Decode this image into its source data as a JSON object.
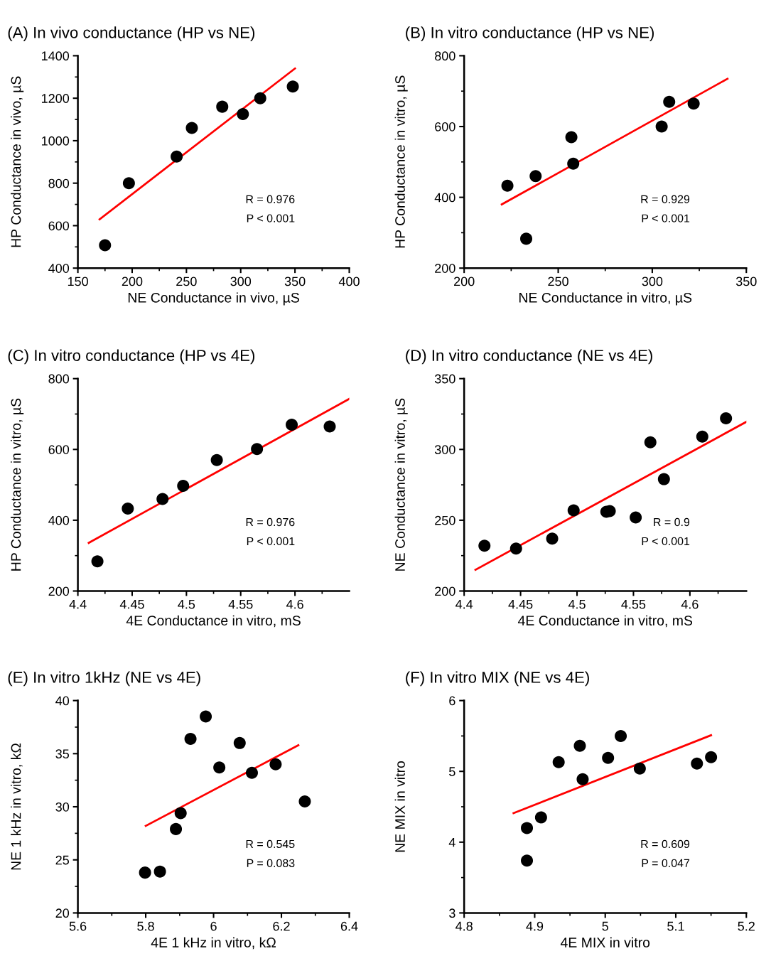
{
  "chart_data": [
    {
      "type": "scatter",
      "title": "(A) In vivo conductance (HP vs NE)",
      "xlabel": "NE Conductance in vivo, µS",
      "ylabel": "HP Conductance in vivo, µS",
      "xlim": [
        150,
        400
      ],
      "xticks": [
        150,
        200,
        250,
        300,
        350,
        400
      ],
      "ylim": [
        400,
        1400
      ],
      "yticks": [
        400,
        600,
        800,
        1000,
        1200,
        1400
      ],
      "grid": false,
      "legend": false,
      "annotations": [
        "R = 0.976",
        "P < 0.001"
      ],
      "series": [
        {
          "marker": "circle",
          "color": "#000000",
          "x": [
            175,
            197,
            241,
            255,
            283,
            302,
            318,
            348
          ],
          "values": [
            508,
            800,
            925,
            1060,
            1160,
            1125,
            1200,
            1255
          ]
        },
        {
          "type": "line",
          "color": "#ff0000",
          "x": [
            170,
            350
          ],
          "values": [
            630,
            1340
          ]
        }
      ]
    },
    {
      "type": "scatter",
      "title": "(B) In vitro conductance (HP vs NE)",
      "xlabel": "NE Conductance in vitro, µS",
      "ylabel": "HP Conductance in vitro, µS",
      "xlim": [
        200,
        350
      ],
      "xticks": [
        200,
        250,
        300,
        350
      ],
      "ylim": [
        200,
        800
      ],
      "yticks": [
        200,
        400,
        600,
        800
      ],
      "grid": false,
      "legend": false,
      "annotations": [
        "R = 0.929",
        "P < 0.001"
      ],
      "series": [
        {
          "marker": "circle",
          "color": "#000000",
          "x": [
            223,
            233,
            238,
            257,
            258,
            305,
            309,
            322
          ],
          "values": [
            433,
            283,
            460,
            570,
            495,
            600,
            670,
            665
          ]
        },
        {
          "type": "line",
          "color": "#ff0000",
          "x": [
            220,
            340
          ],
          "values": [
            380,
            735
          ]
        }
      ]
    },
    {
      "type": "scatter",
      "title": "(C) In vitro conductance (HP vs 4E)",
      "xlabel": "4E Conductance in vitro, mS",
      "ylabel": "HP Conductance in vitro, µS",
      "xlim": [
        4.4,
        4.65
      ],
      "xticks": [
        4.4,
        4.45,
        4.5,
        4.55,
        4.6
      ],
      "ylim": [
        200,
        800
      ],
      "yticks": [
        200,
        400,
        600,
        800
      ],
      "grid": false,
      "legend": false,
      "annotations": [
        "R = 0.976",
        "P < 0.001"
      ],
      "series": [
        {
          "marker": "circle",
          "color": "#000000",
          "x": [
            4.418,
            4.446,
            4.478,
            4.497,
            4.528,
            4.565,
            4.597,
            4.632
          ],
          "values": [
            284,
            433,
            460,
            497,
            570,
            601,
            670,
            665
          ]
        },
        {
          "type": "line",
          "color": "#ff0000",
          "x": [
            4.41,
            4.65
          ],
          "values": [
            336,
            743
          ]
        }
      ]
    },
    {
      "type": "scatter",
      "title": "(D) In vitro conductance (NE vs 4E)",
      "xlabel": "4E Conductance in vitro, mS",
      "ylabel": "NE Conductance in vitro, µS",
      "xlim": [
        4.4,
        4.65
      ],
      "xticks": [
        4.4,
        4.45,
        4.5,
        4.55,
        4.6
      ],
      "ylim": [
        200,
        350
      ],
      "yticks": [
        200,
        250,
        300,
        350
      ],
      "grid": false,
      "legend": false,
      "annotations": [
        "R = 0.9",
        "P < 0.001"
      ],
      "series": [
        {
          "marker": "circle",
          "color": "#000000",
          "x": [
            4.418,
            4.446,
            4.478,
            4.497,
            4.526,
            4.529,
            4.552,
            4.565,
            4.577,
            4.611,
            4.632
          ],
          "values": [
            232,
            230,
            237,
            257,
            256,
            256.5,
            252,
            305,
            279,
            309,
            322
          ]
        },
        {
          "type": "line",
          "color": "#ff0000",
          "x": [
            4.41,
            4.65
          ],
          "values": [
            215,
            319.5
          ]
        }
      ]
    },
    {
      "type": "scatter",
      "title": "(E) In vitro 1kHz (NE vs 4E)",
      "xlabel": "4E 1 kHz in vitro, kΩ",
      "ylabel": "NE 1 kHz in vitro, kΩ",
      "xlim": [
        5.6,
        6.4
      ],
      "xticks": [
        5.6,
        5.8,
        6,
        6.2,
        6.4
      ],
      "ylim": [
        20,
        40
      ],
      "yticks": [
        20,
        25,
        30,
        35,
        40
      ],
      "grid": false,
      "legend": false,
      "annotations": [
        "R = 0.545",
        "P = 0.083"
      ],
      "series": [
        {
          "marker": "circle",
          "color": "#000000",
          "x": [
            5.798,
            5.842,
            5.889,
            5.903,
            5.932,
            5.977,
            6.017,
            6.077,
            6.113,
            6.183,
            6.269
          ],
          "values": [
            23.8,
            23.9,
            27.9,
            29.4,
            36.4,
            38.5,
            33.7,
            36.0,
            33.2,
            34.0,
            30.5
          ]
        },
        {
          "type": "line",
          "color": "#ff0000",
          "x": [
            5.8,
            6.25
          ],
          "values": [
            28.2,
            35.8
          ]
        }
      ]
    },
    {
      "type": "scatter",
      "title": "(F) In vitro MIX (NE vs 4E)",
      "xlabel": "4E MIX in vitro",
      "ylabel": "NE MIX in vitro",
      "xlim": [
        4.8,
        5.2
      ],
      "xticks": [
        4.8,
        4.9,
        5,
        5.1,
        5.2
      ],
      "ylim": [
        3,
        6
      ],
      "yticks": [
        3,
        4,
        5,
        6
      ],
      "grid": false,
      "legend": false,
      "annotations": [
        "R = 0.609",
        "P = 0.047"
      ],
      "series": [
        {
          "marker": "circle",
          "color": "#000000",
          "x": [
            4.889,
            4.889,
            4.909,
            4.934,
            4.964,
            4.968,
            5.004,
            5.022,
            5.049,
            5.13,
            5.15
          ],
          "values": [
            4.2,
            3.74,
            4.35,
            5.13,
            5.36,
            4.89,
            5.19,
            5.5,
            5.04,
            5.11,
            5.2
          ]
        },
        {
          "type": "line",
          "color": "#ff0000",
          "x": [
            4.87,
            5.15
          ],
          "values": [
            4.41,
            5.51
          ]
        }
      ]
    }
  ]
}
